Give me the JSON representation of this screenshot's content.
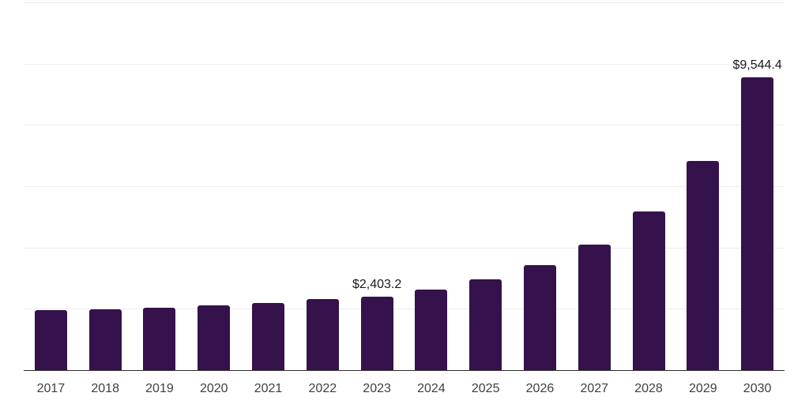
{
  "colors": {
    "background": "#ffffff",
    "bar": "#35124B",
    "grid": "#eeeeee",
    "axis": "#2b2b2b",
    "tick_label": "#404040",
    "annotation": "#1a1a1a"
  },
  "chart_data": {
    "type": "bar",
    "title": "",
    "xlabel": "",
    "ylabel": "",
    "categories": [
      "2017",
      "2018",
      "2019",
      "2020",
      "2021",
      "2022",
      "2023",
      "2024",
      "2025",
      "2026",
      "2027",
      "2028",
      "2029",
      "2030"
    ],
    "values": [
      1960,
      1980,
      2035,
      2100,
      2180,
      2310,
      2403.2,
      2615,
      2950,
      3425,
      4100,
      5165,
      6830,
      9544.4
    ],
    "annotations": [
      {
        "category": "2023",
        "text": "$2,403.2"
      },
      {
        "category": "2030",
        "text": "$9,544.4"
      }
    ],
    "ylim": [
      0,
      12000
    ],
    "grid_step": 2000,
    "grid": true,
    "y_tick_labels_visible": false,
    "legend_position": "none",
    "bar_color": "#35124B"
  }
}
